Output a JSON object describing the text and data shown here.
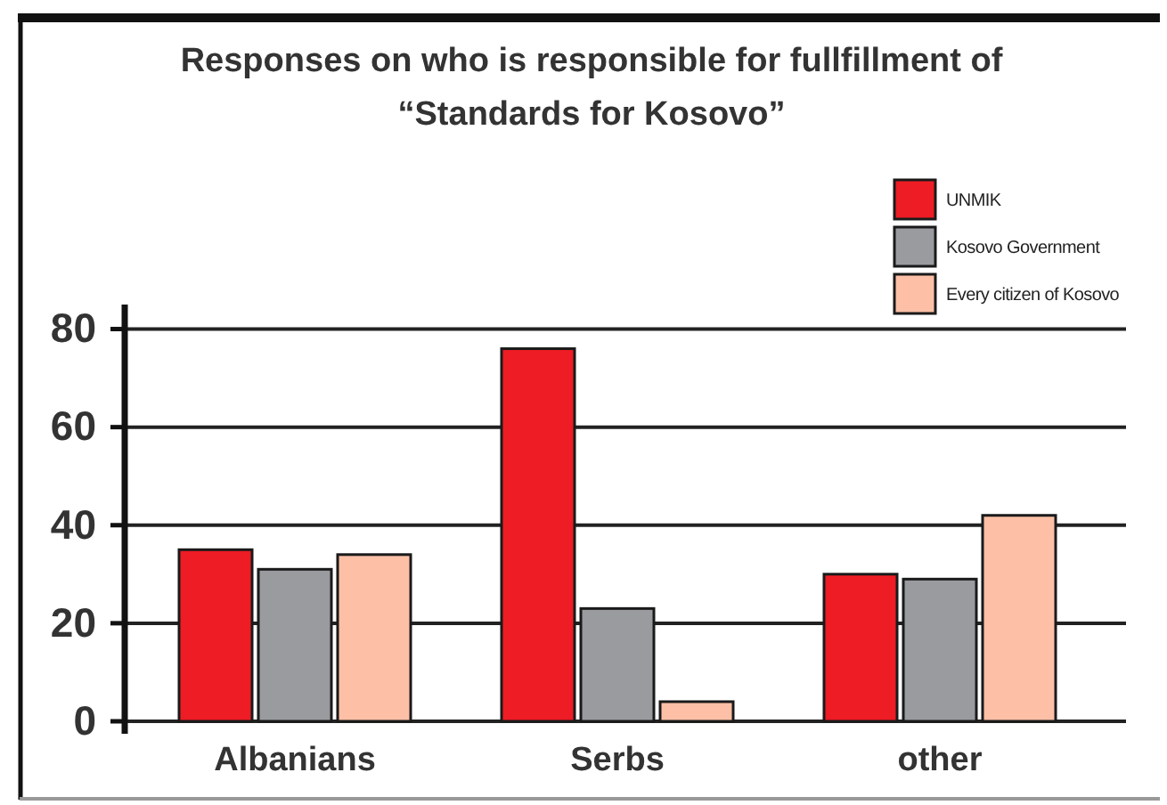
{
  "chart_data": {
    "type": "bar",
    "title": "Responses on who is responsible for fullfillment of “Standards for Kosovo”",
    "categories": [
      "Albanians",
      "Serbs",
      "other"
    ],
    "series": [
      {
        "name": "UNMIK",
        "color": "#ee1c24",
        "values": [
          35,
          76,
          30
        ]
      },
      {
        "name": "Kosovo Government",
        "color": "#9a9b9f",
        "values": [
          31,
          23,
          29
        ]
      },
      {
        "name": "Every citizen of Kosovo",
        "color": "#fdc0a6",
        "values": [
          34,
          4,
          42
        ]
      }
    ],
    "ylim": [
      0,
      85
    ],
    "yticks": [
      0,
      20,
      40,
      60,
      80
    ],
    "grid": "y",
    "legend": "top right"
  }
}
